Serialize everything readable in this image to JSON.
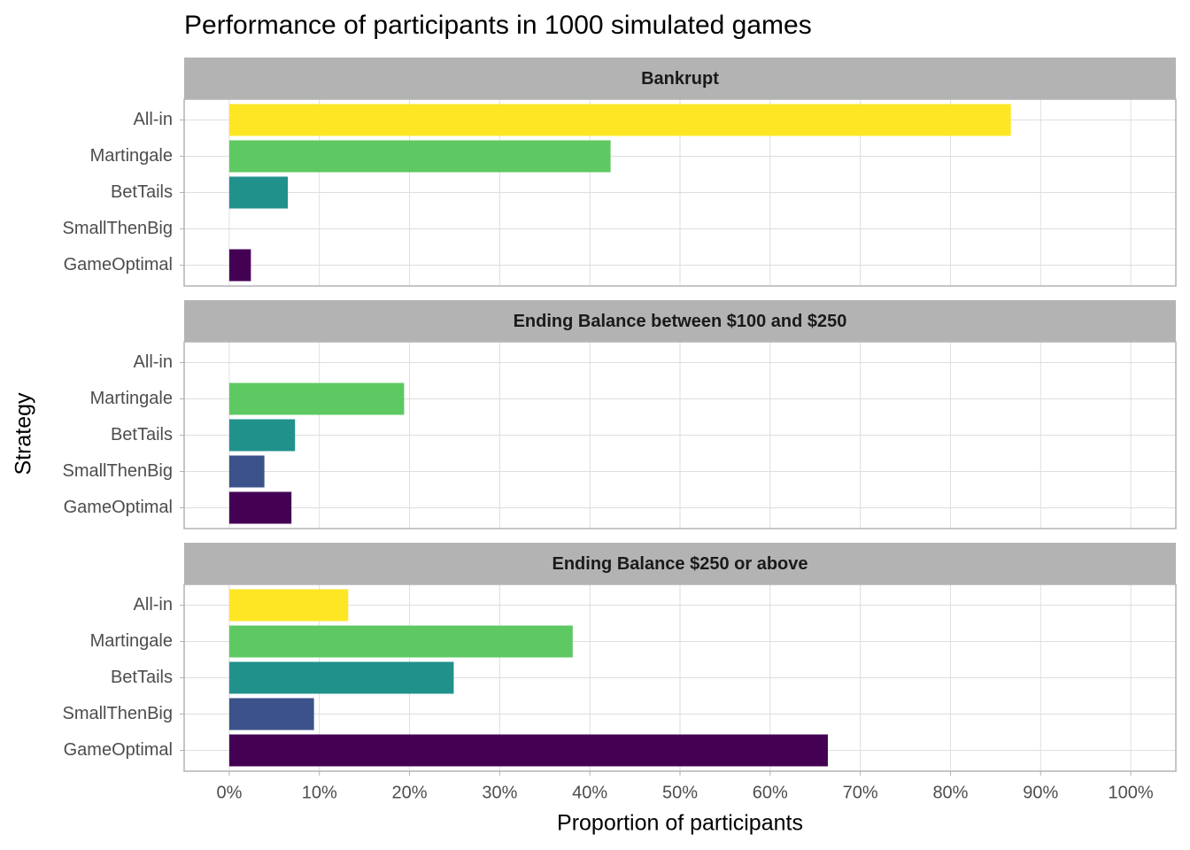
{
  "chart_data": {
    "type": "bar",
    "title": "Performance of participants in 1000 simulated games",
    "xlabel": "Proportion of participants",
    "ylabel": "Strategy",
    "categories": [
      "All-in",
      "Martingale",
      "BetTails",
      "SmallThenBig",
      "GameOptimal"
    ],
    "colors": [
      "#fde725",
      "#5ec962",
      "#21918c",
      "#3b528b",
      "#440154"
    ],
    "facets": [
      {
        "title": "Bankrupt",
        "values": [
          86.7,
          42.3,
          6.5,
          0,
          2.4
        ]
      },
      {
        "title": "Ending Balance between $100 and $250",
        "values": [
          0,
          19.4,
          7.3,
          3.9,
          6.9
        ]
      },
      {
        "title": "Ending Balance $250 or above",
        "values": [
          13.2,
          38.1,
          24.9,
          9.4,
          66.4
        ]
      }
    ],
    "xlim": [
      -5,
      105
    ],
    "xticks": [
      {
        "value": 0,
        "label": "0%"
      },
      {
        "value": 10,
        "label": "10%"
      },
      {
        "value": 20,
        "label": "20%"
      },
      {
        "value": 30,
        "label": "30%"
      },
      {
        "value": 40,
        "label": "40%"
      },
      {
        "value": 50,
        "label": "50%"
      },
      {
        "value": 60,
        "label": "60%"
      },
      {
        "value": 70,
        "label": "70%"
      },
      {
        "value": 80,
        "label": "80%"
      },
      {
        "value": 90,
        "label": "90%"
      },
      {
        "value": 100,
        "label": "100%"
      }
    ],
    "grid": true
  }
}
